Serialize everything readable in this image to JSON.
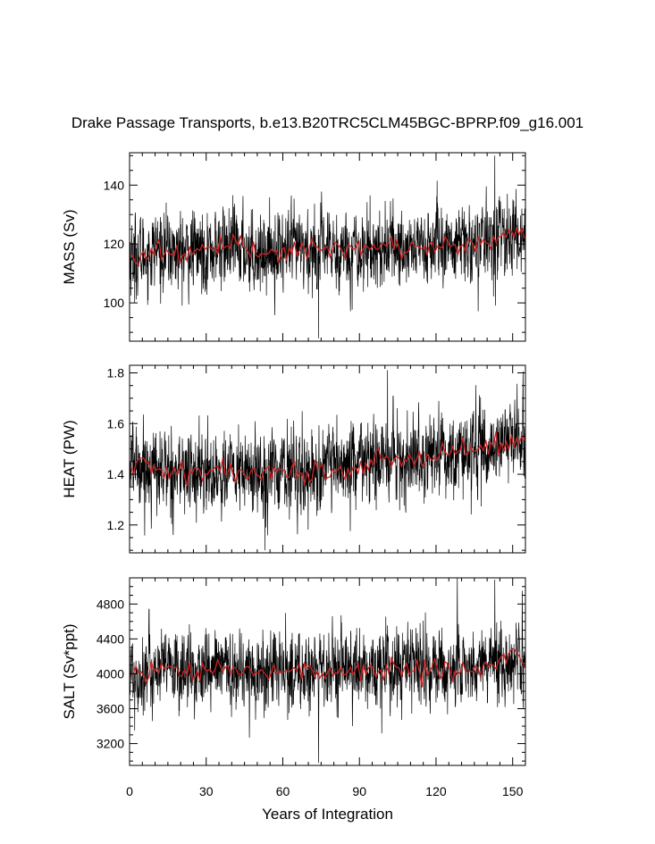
{
  "title": "Drake Passage Transports, b.e13.B20TRC5CLM45BGC-BPRP.f09_g16.001",
  "colors": {
    "raw_series": "#000000",
    "smoothed_series": "#cc2222"
  },
  "chart_data": [
    {
      "type": "line",
      "ylabel": "MASS (Sv)",
      "xlabel": "",
      "xlim": [
        0,
        155
      ],
      "ylim": [
        87,
        151
      ],
      "yticks": [
        100,
        120,
        140
      ],
      "xticks": [
        0,
        30,
        60,
        90,
        120,
        150
      ],
      "stats": {
        "mean": 117.5,
        "std": 7.0,
        "trend_per_year": 0.03,
        "min": 88,
        "max": 150,
        "smooth_start": 116.5,
        "smooth_end": 123
      },
      "series": [
        {
          "values": [
            [
              0,
              117
            ],
            [
              1,
              119
            ],
            [
              2,
              100
            ],
            [
              3,
              118
            ],
            [
              4,
              121
            ],
            [
              5,
              116
            ],
            [
              6,
              118
            ],
            [
              7,
              110
            ],
            [
              8,
              117
            ],
            [
              10,
              120
            ],
            [
              12,
              118
            ],
            [
              14,
              116
            ],
            [
              16,
              119
            ],
            [
              18,
              121
            ],
            [
              20,
              117
            ],
            [
              22,
              116
            ],
            [
              25,
              118
            ],
            [
              28,
              119
            ],
            [
              30,
              116
            ],
            [
              33,
              117
            ],
            [
              36,
              118
            ],
            [
              40,
              120
            ],
            [
              44,
              118
            ],
            [
              48,
              117
            ],
            [
              50,
              118
            ],
            [
              55,
              119
            ],
            [
              60,
              117
            ],
            [
              65,
              118
            ],
            [
              70,
              117
            ],
            [
              74,
              88
            ],
            [
              75,
              118
            ],
            [
              80,
              119
            ],
            [
              85,
              117
            ],
            [
              90,
              118
            ],
            [
              95,
              117
            ],
            [
              100,
              119
            ],
            [
              105,
              118
            ],
            [
              110,
              120
            ],
            [
              115,
              119
            ],
            [
              120,
              119
            ],
            [
              125,
              120
            ],
            [
              130,
              121
            ],
            [
              135,
              119
            ],
            [
              140,
              121
            ],
            [
              143,
              150
            ],
            [
              145,
              123
            ],
            [
              148,
              124
            ],
            [
              150,
              124
            ],
            [
              152,
              121
            ],
            [
              155,
              123
            ]
          ]
        },
        {
          "values": [
            [
              0,
              116.5
            ],
            [
              5,
              116
            ],
            [
              10,
              118
            ],
            [
              20,
              117
            ],
            [
              30,
              118
            ],
            [
              40,
              119
            ],
            [
              50,
              117.5
            ],
            [
              60,
              118
            ],
            [
              70,
              117.5
            ],
            [
              80,
              118
            ],
            [
              90,
              118
            ],
            [
              100,
              119
            ],
            [
              110,
              119
            ],
            [
              120,
              119.5
            ],
            [
              130,
              119
            ],
            [
              140,
              121
            ],
            [
              145,
              122
            ],
            [
              150,
              123
            ],
            [
              155,
              123
            ]
          ]
        }
      ]
    },
    {
      "type": "line",
      "ylabel": "HEAT (PW)",
      "xlabel": "",
      "xlim": [
        0,
        155
      ],
      "ylim": [
        1.09,
        1.83
      ],
      "yticks": [
        1.2,
        1.4,
        1.6,
        1.8
      ],
      "xticks": [
        0,
        30,
        60,
        90,
        120,
        150
      ],
      "stats": {
        "mean": 1.43,
        "std": 0.085,
        "trend_per_year": 0.0007,
        "min": 1.1,
        "max": 1.82,
        "smooth_start": 1.45,
        "smooth_end": 1.55
      },
      "series": [
        {
          "values": [
            [
              0,
              1.45
            ],
            [
              2,
              1.38
            ],
            [
              5,
              1.42
            ],
            [
              10,
              1.4
            ],
            [
              15,
              1.46
            ],
            [
              20,
              1.41
            ],
            [
              25,
              1.38
            ],
            [
              30,
              1.4
            ],
            [
              35,
              1.42
            ],
            [
              40,
              1.4
            ],
            [
              45,
              1.43
            ],
            [
              50,
              1.39
            ],
            [
              53,
              1.1
            ],
            [
              55,
              1.4
            ],
            [
              60,
              1.45
            ],
            [
              65,
              1.4
            ],
            [
              70,
              1.42
            ],
            [
              75,
              1.41
            ],
            [
              80,
              1.43
            ],
            [
              85,
              1.42
            ],
            [
              90,
              1.44
            ],
            [
              95,
              1.44
            ],
            [
              100,
              1.45
            ],
            [
              101,
              1.81
            ],
            [
              105,
              1.46
            ],
            [
              110,
              1.47
            ],
            [
              115,
              1.46
            ],
            [
              120,
              1.48
            ],
            [
              125,
              1.49
            ],
            [
              130,
              1.48
            ],
            [
              135,
              1.5
            ],
            [
              140,
              1.5
            ],
            [
              145,
              1.52
            ],
            [
              150,
              1.54
            ],
            [
              155,
              1.56
            ]
          ]
        },
        {
          "values": [
            [
              0,
              1.45
            ],
            [
              10,
              1.42
            ],
            [
              20,
              1.41
            ],
            [
              30,
              1.4
            ],
            [
              40,
              1.41
            ],
            [
              50,
              1.4
            ],
            [
              60,
              1.42
            ],
            [
              70,
              1.41
            ],
            [
              80,
              1.42
            ],
            [
              90,
              1.44
            ],
            [
              100,
              1.45
            ],
            [
              110,
              1.46
            ],
            [
              120,
              1.47
            ],
            [
              130,
              1.48
            ],
            [
              140,
              1.5
            ],
            [
              150,
              1.53
            ],
            [
              155,
              1.55
            ]
          ]
        }
      ]
    },
    {
      "type": "line",
      "ylabel": "SALT (Sv*ppt)",
      "xlabel": "Years of Integration",
      "xlim": [
        0,
        155
      ],
      "ylim": [
        2950,
        5100
      ],
      "yticks": [
        3200,
        3600,
        4000,
        4400,
        4800
      ],
      "xticks": [
        0,
        30,
        60,
        90,
        120,
        150
      ],
      "xticklabels": [
        "0",
        "30",
        "60",
        "90",
        "120",
        "150"
      ],
      "stats": {
        "mean": 4020,
        "std": 235,
        "trend_per_year": 1.0,
        "min": 2980,
        "max": 5080,
        "smooth_start": 4030,
        "smooth_end": 4180
      },
      "series": [
        {
          "values": [
            [
              0,
              4030
            ],
            [
              1,
              4050
            ],
            [
              2,
              3350
            ],
            [
              3,
              4020
            ],
            [
              4,
              4060
            ],
            [
              5,
              3980
            ],
            [
              6,
              4010
            ],
            [
              7,
              3700
            ],
            [
              8,
              4000
            ],
            [
              10,
              4080
            ],
            [
              12,
              4010
            ],
            [
              14,
              3960
            ],
            [
              16,
              4040
            ],
            [
              18,
              4100
            ],
            [
              20,
              4000
            ],
            [
              22,
              3970
            ],
            [
              25,
              4020
            ],
            [
              28,
              4050
            ],
            [
              30,
              3970
            ],
            [
              33,
              4000
            ],
            [
              36,
              4020
            ],
            [
              40,
              4080
            ],
            [
              44,
              4020
            ],
            [
              48,
              4000
            ],
            [
              50,
              4020
            ],
            [
              55,
              4050
            ],
            [
              60,
              4000
            ],
            [
              65,
              4020
            ],
            [
              70,
              4000
            ],
            [
              74,
              2980
            ],
            [
              75,
              4020
            ],
            [
              80,
              4050
            ],
            [
              85,
              4000
            ],
            [
              90,
              4020
            ],
            [
              95,
              4000
            ],
            [
              100,
              4050
            ],
            [
              105,
              4030
            ],
            [
              110,
              4080
            ],
            [
              115,
              4060
            ],
            [
              120,
              4050
            ],
            [
              125,
              4080
            ],
            [
              130,
              4100
            ],
            [
              135,
              4050
            ],
            [
              140,
              4100
            ],
            [
              143,
              5080
            ],
            [
              145,
              4160
            ],
            [
              148,
              4180
            ],
            [
              150,
              4200
            ],
            [
              152,
              4120
            ],
            [
              155,
              4180
            ]
          ]
        },
        {
          "values": [
            [
              0,
              4030
            ],
            [
              5,
              4000
            ],
            [
              10,
              4060
            ],
            [
              20,
              4020
            ],
            [
              30,
              4040
            ],
            [
              40,
              4060
            ],
            [
              50,
              4010
            ],
            [
              60,
              4030
            ],
            [
              70,
              4010
            ],
            [
              80,
              4030
            ],
            [
              90,
              4030
            ],
            [
              100,
              4060
            ],
            [
              110,
              4060
            ],
            [
              120,
              4070
            ],
            [
              130,
              4060
            ],
            [
              140,
              4120
            ],
            [
              145,
              4150
            ],
            [
              150,
              4180
            ],
            [
              155,
              4180
            ]
          ]
        }
      ]
    }
  ]
}
